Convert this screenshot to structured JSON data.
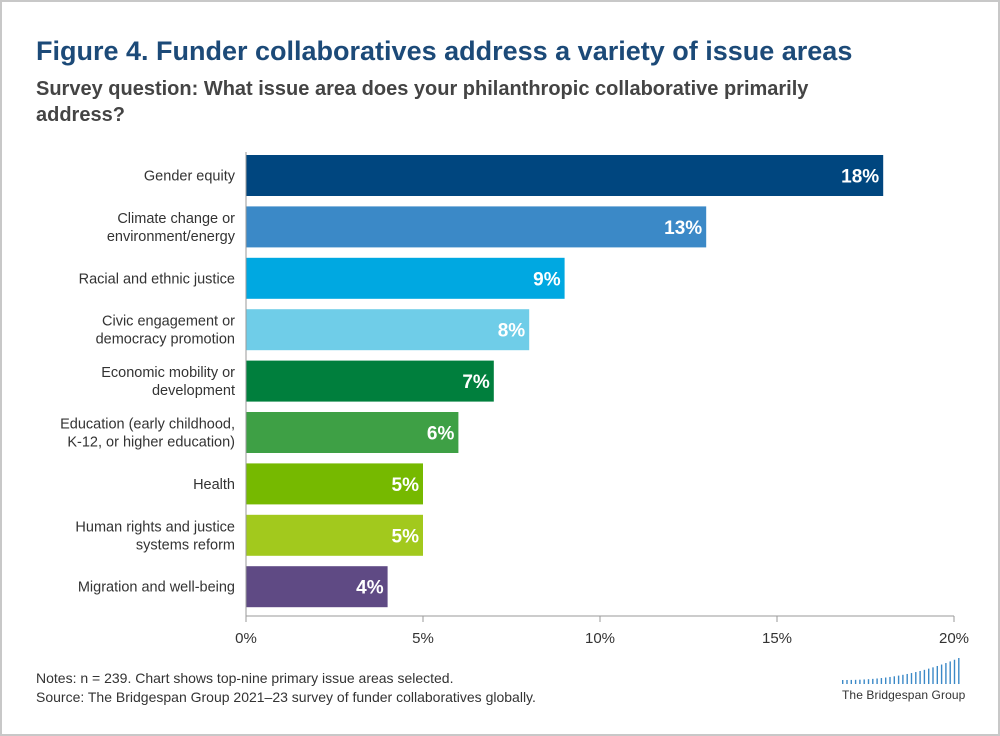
{
  "figure": {
    "title": "Figure 4. Funder collaboratives address a variety of issue areas",
    "subtitle": "Survey question: What issue area does your philanthropic collaborative primarily address?"
  },
  "chart_data": {
    "type": "bar",
    "orientation": "horizontal",
    "title": "Figure 4. Funder collaboratives address a variety of issue areas",
    "subtitle": "Survey question: What issue area does your philanthropic collaborative primarily address?",
    "xlabel": "",
    "ylabel": "",
    "xlim": [
      0,
      20
    ],
    "xticks": [
      0,
      5,
      10,
      15,
      20
    ],
    "tick_labels": [
      "0%",
      "5%",
      "10%",
      "15%",
      "20%"
    ],
    "grid": false,
    "categories": [
      [
        "Gender equity"
      ],
      [
        "Climate change or",
        "environment/energy"
      ],
      [
        "Racial and ethnic justice"
      ],
      [
        "Civic engagement or",
        "democracy promotion"
      ],
      [
        "Economic mobility or",
        "development"
      ],
      [
        "Education (early childhood,",
        "K-12, or higher education)"
      ],
      [
        "Health"
      ],
      [
        "Human rights and justice",
        "systems reform"
      ],
      [
        "Migration and well-being"
      ]
    ],
    "values": [
      18,
      13,
      9,
      8,
      7,
      6,
      5,
      5,
      4
    ],
    "value_labels": [
      "18%",
      "13%",
      "9%",
      "8%",
      "7%",
      "6%",
      "5%",
      "5%",
      "4%"
    ],
    "colors": [
      "#00467f",
      "#3b89c7",
      "#00a8e1",
      "#6fcde8",
      "#007f3d",
      "#3ea045",
      "#76b900",
      "#a2c91d",
      "#5f4a84"
    ]
  },
  "notes": {
    "line1": "Notes: n = 239. Chart shows top-nine primary issue areas selected.",
    "line2": "Source: The Bridgespan Group 2021–23 survey of funder collaboratives globally."
  },
  "logo": {
    "text": "The Bridgespan Group",
    "color": "#3b89c7"
  }
}
